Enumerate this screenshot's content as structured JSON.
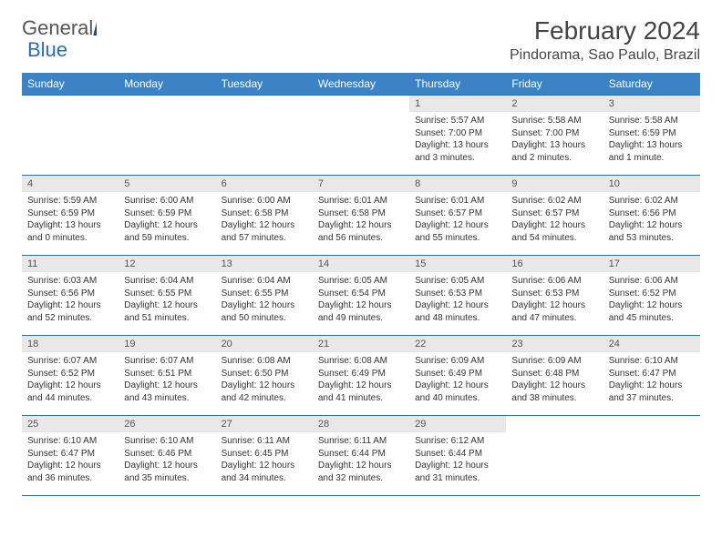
{
  "logo": {
    "text1": "General",
    "text2": "Blue"
  },
  "title": "February 2024",
  "location": "Pindorama, Sao Paulo, Brazil",
  "headers": [
    "Sunday",
    "Monday",
    "Tuesday",
    "Wednesday",
    "Thursday",
    "Friday",
    "Saturday"
  ],
  "colors": {
    "header_bg": "#3b83c5",
    "border": "#2a6db5",
    "daynum_bg": "#e8e8e8"
  },
  "weeks": [
    [
      null,
      null,
      null,
      null,
      {
        "n": "1",
        "sr": "5:57 AM",
        "ss": "7:00 PM",
        "dl": "13 hours and 3 minutes."
      },
      {
        "n": "2",
        "sr": "5:58 AM",
        "ss": "7:00 PM",
        "dl": "13 hours and 2 minutes."
      },
      {
        "n": "3",
        "sr": "5:58 AM",
        "ss": "6:59 PM",
        "dl": "13 hours and 1 minute."
      }
    ],
    [
      {
        "n": "4",
        "sr": "5:59 AM",
        "ss": "6:59 PM",
        "dl": "13 hours and 0 minutes."
      },
      {
        "n": "5",
        "sr": "6:00 AM",
        "ss": "6:59 PM",
        "dl": "12 hours and 59 minutes."
      },
      {
        "n": "6",
        "sr": "6:00 AM",
        "ss": "6:58 PM",
        "dl": "12 hours and 57 minutes."
      },
      {
        "n": "7",
        "sr": "6:01 AM",
        "ss": "6:58 PM",
        "dl": "12 hours and 56 minutes."
      },
      {
        "n": "8",
        "sr": "6:01 AM",
        "ss": "6:57 PM",
        "dl": "12 hours and 55 minutes."
      },
      {
        "n": "9",
        "sr": "6:02 AM",
        "ss": "6:57 PM",
        "dl": "12 hours and 54 minutes."
      },
      {
        "n": "10",
        "sr": "6:02 AM",
        "ss": "6:56 PM",
        "dl": "12 hours and 53 minutes."
      }
    ],
    [
      {
        "n": "11",
        "sr": "6:03 AM",
        "ss": "6:56 PM",
        "dl": "12 hours and 52 minutes."
      },
      {
        "n": "12",
        "sr": "6:04 AM",
        "ss": "6:55 PM",
        "dl": "12 hours and 51 minutes."
      },
      {
        "n": "13",
        "sr": "6:04 AM",
        "ss": "6:55 PM",
        "dl": "12 hours and 50 minutes."
      },
      {
        "n": "14",
        "sr": "6:05 AM",
        "ss": "6:54 PM",
        "dl": "12 hours and 49 minutes."
      },
      {
        "n": "15",
        "sr": "6:05 AM",
        "ss": "6:53 PM",
        "dl": "12 hours and 48 minutes."
      },
      {
        "n": "16",
        "sr": "6:06 AM",
        "ss": "6:53 PM",
        "dl": "12 hours and 47 minutes."
      },
      {
        "n": "17",
        "sr": "6:06 AM",
        "ss": "6:52 PM",
        "dl": "12 hours and 45 minutes."
      }
    ],
    [
      {
        "n": "18",
        "sr": "6:07 AM",
        "ss": "6:52 PM",
        "dl": "12 hours and 44 minutes."
      },
      {
        "n": "19",
        "sr": "6:07 AM",
        "ss": "6:51 PM",
        "dl": "12 hours and 43 minutes."
      },
      {
        "n": "20",
        "sr": "6:08 AM",
        "ss": "6:50 PM",
        "dl": "12 hours and 42 minutes."
      },
      {
        "n": "21",
        "sr": "6:08 AM",
        "ss": "6:49 PM",
        "dl": "12 hours and 41 minutes."
      },
      {
        "n": "22",
        "sr": "6:09 AM",
        "ss": "6:49 PM",
        "dl": "12 hours and 40 minutes."
      },
      {
        "n": "23",
        "sr": "6:09 AM",
        "ss": "6:48 PM",
        "dl": "12 hours and 38 minutes."
      },
      {
        "n": "24",
        "sr": "6:10 AM",
        "ss": "6:47 PM",
        "dl": "12 hours and 37 minutes."
      }
    ],
    [
      {
        "n": "25",
        "sr": "6:10 AM",
        "ss": "6:47 PM",
        "dl": "12 hours and 36 minutes."
      },
      {
        "n": "26",
        "sr": "6:10 AM",
        "ss": "6:46 PM",
        "dl": "12 hours and 35 minutes."
      },
      {
        "n": "27",
        "sr": "6:11 AM",
        "ss": "6:45 PM",
        "dl": "12 hours and 34 minutes."
      },
      {
        "n": "28",
        "sr": "6:11 AM",
        "ss": "6:44 PM",
        "dl": "12 hours and 32 minutes."
      },
      {
        "n": "29",
        "sr": "6:12 AM",
        "ss": "6:44 PM",
        "dl": "12 hours and 31 minutes."
      },
      null,
      null
    ]
  ],
  "labels": {
    "sunrise": "Sunrise:",
    "sunset": "Sunset:",
    "daylight": "Daylight:"
  }
}
